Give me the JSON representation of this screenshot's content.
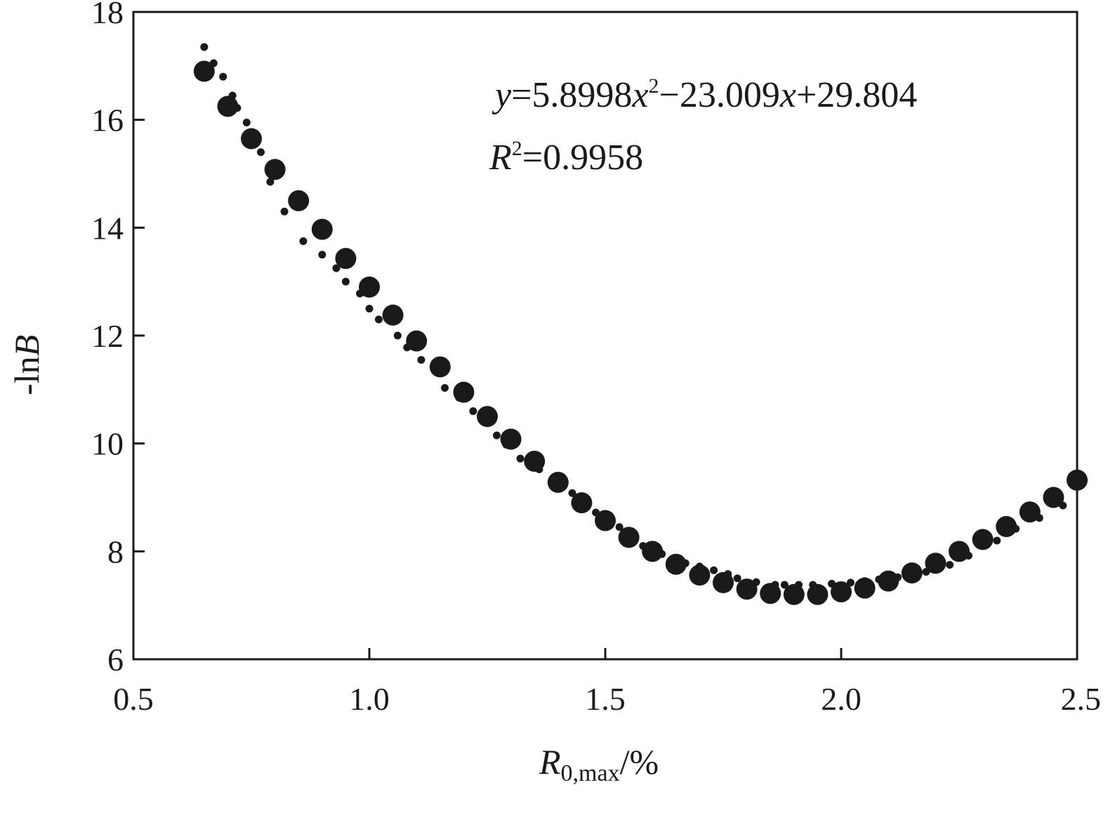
{
  "chart_data": {
    "type": "scatter",
    "xlabel": "R",
    "xlabel_sub": "0,max",
    "xlabel_suffix": "/%",
    "ylabel_prefix": "-ln",
    "ylabel_var": "B",
    "xlim": [
      0.5,
      2.5
    ],
    "ylim": [
      6,
      18
    ],
    "xticks": [
      "0.5",
      "1.0",
      "1.5",
      "2.0",
      "2.5"
    ],
    "yticks": [
      "6",
      "8",
      "10",
      "12",
      "14",
      "16",
      "18"
    ],
    "grid": false,
    "legend": "none",
    "annotations": {
      "equation": {
        "y": "y",
        "eq1": "=5.8998",
        "x1": "x",
        "sup": "2",
        "eq2": "−23.009",
        "x2": "x",
        "eq3": "+29.804"
      },
      "r2": {
        "R": "R",
        "sup": "2",
        "value": "=0.9958"
      }
    },
    "series": [
      {
        "marker": "large-circle",
        "x": [
          0.65,
          0.7,
          0.75,
          0.8,
          0.85,
          0.9,
          0.95,
          1.0,
          1.05,
          1.1,
          1.15,
          1.2,
          1.25,
          1.3,
          1.35,
          1.4,
          1.45,
          1.5,
          1.55,
          1.6,
          1.65,
          1.7,
          1.75,
          1.8,
          1.85,
          1.9,
          1.95,
          2.0,
          2.05,
          2.1,
          2.15,
          2.2,
          2.25,
          2.3,
          2.35,
          2.4,
          2.45,
          2.5
        ],
        "y": [
          16.9,
          16.25,
          15.65,
          15.08,
          14.5,
          13.97,
          13.43,
          12.9,
          12.38,
          11.9,
          11.42,
          10.95,
          10.5,
          10.08,
          9.67,
          9.28,
          8.9,
          8.57,
          8.26,
          8.0,
          7.76,
          7.56,
          7.42,
          7.3,
          7.22,
          7.2,
          7.2,
          7.25,
          7.32,
          7.45,
          7.6,
          7.78,
          8.0,
          8.22,
          8.46,
          8.73,
          9.0,
          9.32
        ]
      },
      {
        "marker": "small-dot",
        "x": [
          0.65,
          0.67,
          0.69,
          0.71,
          0.72,
          0.74,
          0.77,
          0.79,
          0.82,
          0.86,
          0.9,
          0.93,
          0.95,
          0.98,
          1.0,
          1.02,
          1.06,
          1.08,
          1.11,
          1.16,
          1.19,
          1.22,
          1.27,
          1.29,
          1.32,
          1.36,
          1.4,
          1.43,
          1.48,
          1.53,
          1.58,
          1.62,
          1.67,
          1.7,
          1.73,
          1.76,
          1.78,
          1.82,
          1.86,
          1.88,
          1.91,
          1.94,
          1.98,
          2.02,
          2.05,
          2.08,
          2.12,
          2.18,
          2.23,
          2.27,
          2.33,
          2.37,
          2.42,
          2.47
        ],
        "y": [
          17.35,
          17.05,
          16.8,
          16.45,
          16.22,
          15.95,
          15.4,
          14.85,
          14.3,
          13.75,
          13.5,
          13.25,
          13.0,
          12.78,
          12.5,
          12.3,
          12.0,
          11.78,
          11.55,
          11.03,
          10.85,
          10.6,
          10.15,
          9.98,
          9.72,
          9.52,
          9.3,
          9.08,
          8.72,
          8.45,
          8.1,
          7.95,
          7.78,
          7.72,
          7.65,
          7.58,
          7.5,
          7.43,
          7.38,
          7.38,
          7.38,
          7.38,
          7.4,
          7.42,
          7.45,
          7.48,
          7.52,
          7.62,
          7.75,
          7.92,
          8.2,
          8.42,
          8.62,
          8.85
        ]
      }
    ]
  }
}
